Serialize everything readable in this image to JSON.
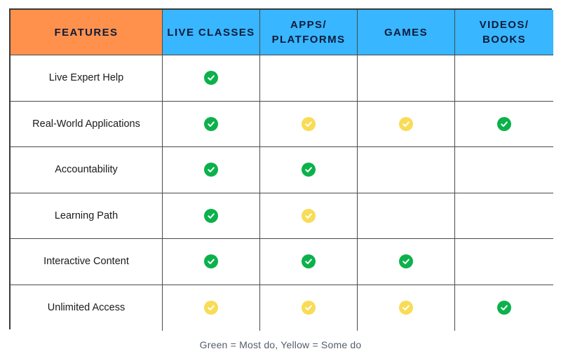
{
  "table": {
    "headers": [
      "FEATURES",
      "LIVE CLASSES",
      "APPS/\nPLATFORMS",
      "GAMES",
      "VIDEOS/\nBOOKS"
    ],
    "rows": [
      {
        "feature": "Live Expert Help",
        "marks": [
          "green",
          "",
          "",
          ""
        ]
      },
      {
        "feature": "Real-World Applications",
        "marks": [
          "green",
          "yellow",
          "yellow",
          "green"
        ]
      },
      {
        "feature": "Accountability",
        "marks": [
          "green",
          "green",
          "",
          ""
        ]
      },
      {
        "feature": "Learning Path",
        "marks": [
          "green",
          "yellow",
          "",
          ""
        ]
      },
      {
        "feature": "Interactive Content",
        "marks": [
          "green",
          "green",
          "green",
          ""
        ]
      },
      {
        "feature": "Unlimited Access",
        "marks": [
          "yellow",
          "yellow",
          "yellow",
          "green"
        ]
      }
    ]
  },
  "colors": {
    "features_header": "#ff914d",
    "column_header": "#38b6ff",
    "green_mark": "#0cb14b",
    "yellow_mark": "#f8dc57"
  },
  "icons": {
    "mark": "check-circle-icon"
  },
  "caption": "Green = Most do, Yellow = Some do"
}
